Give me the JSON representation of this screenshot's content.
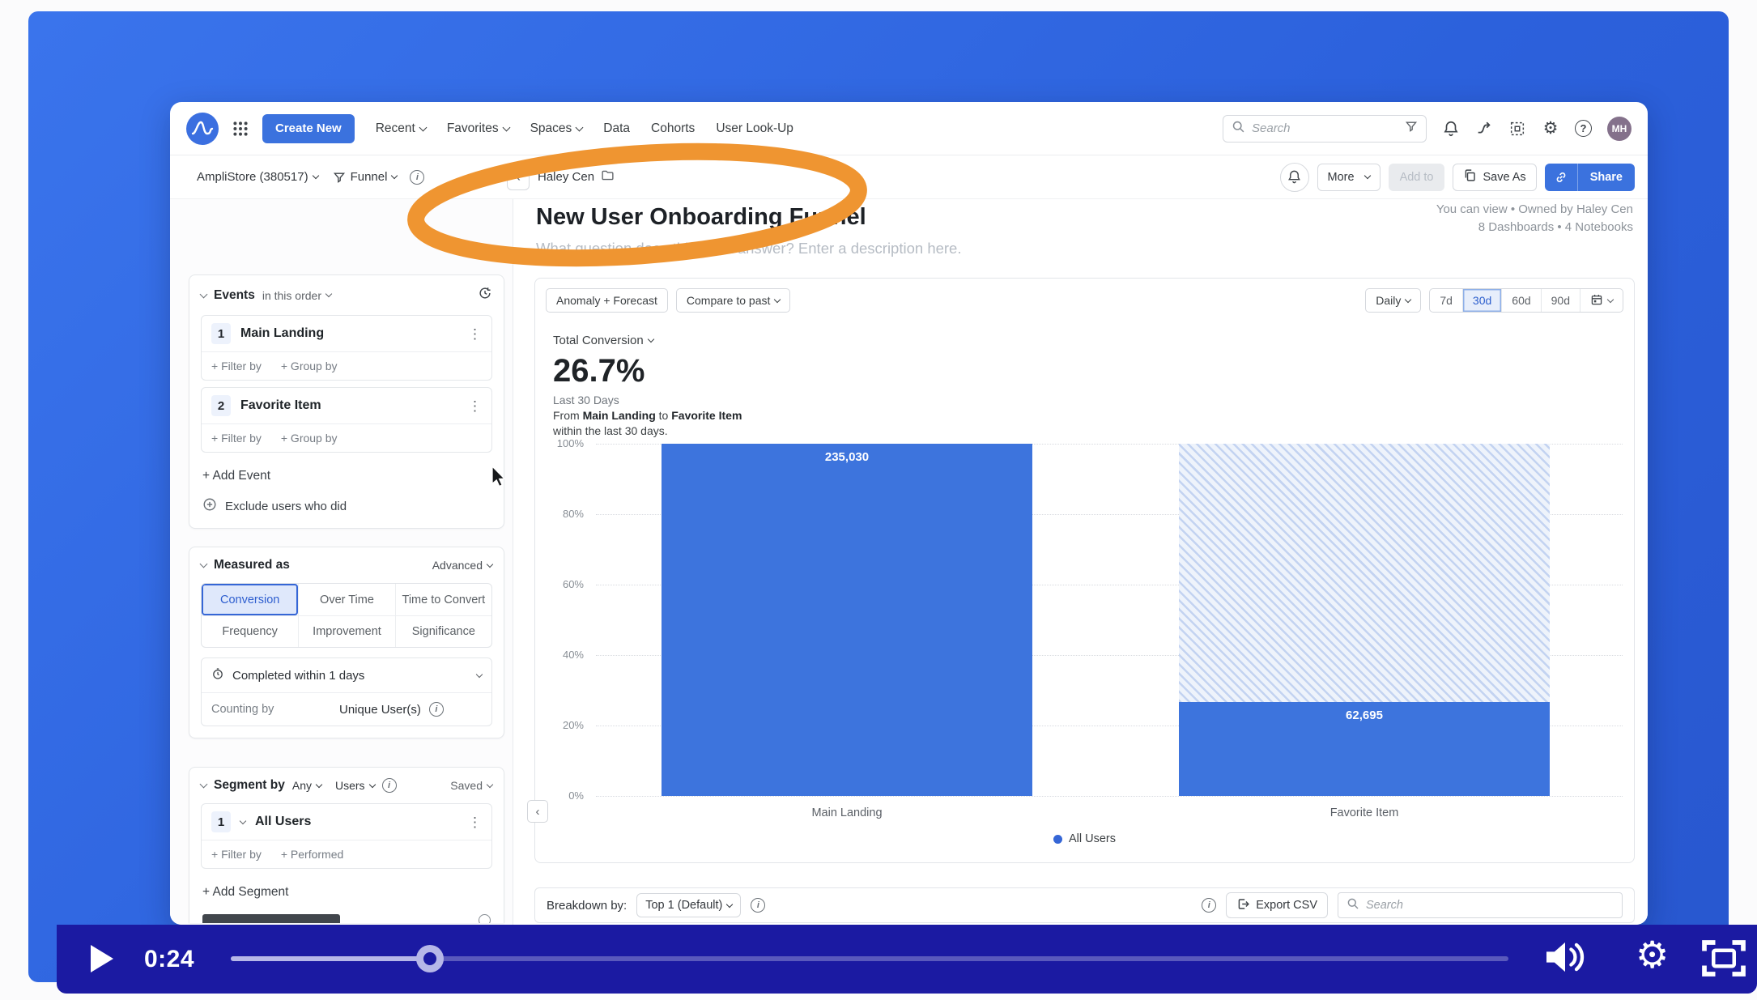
{
  "colors": {
    "frame_blue": "#2e63de",
    "player_bar_blue": "#1b1aa2",
    "accent_blue": "#3b72de",
    "bar_blue": "#3d74dd",
    "selected_tint": "#e7eefb",
    "annotation_orange": "#ef9531"
  },
  "player": {
    "time": "0:24",
    "progress_pct": 15.6
  },
  "topnav": {
    "create_new": "Create New",
    "items": [
      "Recent",
      "Favorites",
      "Spaces",
      "Data",
      "Cohorts",
      "User Look-Up"
    ],
    "search_placeholder": "Search",
    "avatar_initials": "MH"
  },
  "toolbar": {
    "project": "AmpliStore (380517)",
    "chart_type": "Funnel",
    "breadcrumb": "Haley Cen",
    "more_label": "More",
    "add_to_label": "Add to",
    "save_as_label": "Save As",
    "share_label": "Share"
  },
  "header": {
    "title": "New User Onboarding Funnel",
    "description_placeholder": "What question does this chart answer? Enter a description here.",
    "permission": "You can view • Owned by Haley Cen",
    "usage": "8 Dashboards • 4 Notebooks"
  },
  "sidebar": {
    "events": {
      "title": "Events",
      "order_label": "in this order",
      "items": [
        {
          "index": "1",
          "name": "Main Landing",
          "actions": [
            "+ Filter by",
            "+ Group by"
          ]
        },
        {
          "index": "2",
          "name": "Favorite Item",
          "actions": [
            "+ Filter by",
            "+ Group by"
          ]
        }
      ],
      "add_label": "+ Add Event",
      "exclude_label": "Exclude users who did"
    },
    "measured": {
      "title": "Measured as",
      "advanced_label": "Advanced",
      "modes": [
        "Conversion",
        "Over Time",
        "Time to Convert",
        "Frequency",
        "Improvement",
        "Significance"
      ],
      "selected_mode": "Conversion",
      "window_label": "Completed within 1 days",
      "counting_label": "Counting by",
      "counting_value": "Unique User(s)"
    },
    "segment": {
      "title": "Segment by",
      "match_label": "Any",
      "type_label": "Users",
      "saved_label": "Saved",
      "items": [
        {
          "index": "1",
          "name": "All Users",
          "actions": [
            "+ Filter by",
            "+ Performed"
          ]
        }
      ],
      "add_label": "+ Add Segment"
    }
  },
  "chart": {
    "anomaly_label": "Anomaly + Forecast",
    "compare_label": "Compare to past",
    "granularity": "Daily",
    "ranges": [
      "7d",
      "30d",
      "60d",
      "90d"
    ],
    "selected_range": "30d",
    "metric_label": "Total Conversion",
    "value": "26.7%",
    "period": "Last 30 Days",
    "from_word": "From",
    "from_event": "Main Landing",
    "to_word": "to",
    "to_event": "Favorite Item",
    "window_text": "within the last 30 days.",
    "legend": "All Users"
  },
  "chart_data": {
    "type": "bar",
    "title": "New User Onboarding Funnel",
    "metric": "Total Conversion",
    "total_conversion": "26.7%",
    "period": "Last 30 Days",
    "categories": [
      "Main Landing",
      "Favorite Item"
    ],
    "series": [
      {
        "name": "All Users",
        "values": [
          235030,
          62695
        ],
        "percent_of_first": [
          100,
          26.7
        ]
      }
    ],
    "value_labels": [
      "235,030",
      "62,695"
    ],
    "yticks": [
      "100%",
      "80%",
      "60%",
      "40%",
      "20%",
      "0%"
    ],
    "ylim": [
      0,
      100
    ],
    "legend_position": "bottom",
    "grid": "horizontal-dotted",
    "forecast_hatch_on": "Favorite Item"
  },
  "breakdown": {
    "label": "Breakdown by:",
    "selector_value": "Top 1 (Default)",
    "export_label": "Export CSV",
    "search_placeholder": "Search"
  }
}
